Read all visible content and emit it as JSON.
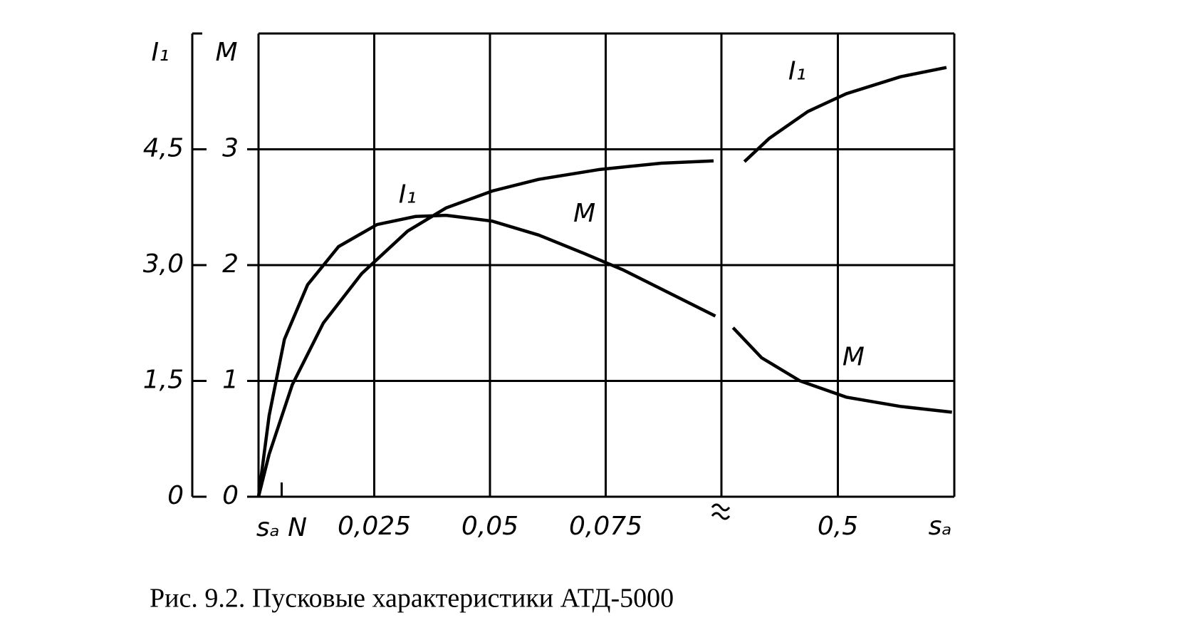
{
  "chart_data": [
    {
      "type": "line",
      "y_label": "M",
      "y2_label": "I₁",
      "ylim": [
        0,
        4
      ],
      "yticks": [
        0,
        1,
        2,
        3
      ],
      "y2lim": [
        0,
        6
      ],
      "y2ticks": [
        0,
        {
          "value": 1.5,
          "label": "1,5"
        },
        {
          "value": 3.0,
          "label": "3,0"
        },
        {
          "value": 4.5,
          "label": "4,5"
        }
      ],
      "xlim": [
        0,
        0.1
      ],
      "xticks": [
        {
          "value": 0.025,
          "label": "0,025"
        },
        {
          "value": 0.05,
          "label": "0,05"
        },
        {
          "value": 0.075,
          "label": "0,075"
        }
      ],
      "annotations": [
        {
          "text": "sₐ N",
          "x": 0.005
        }
      ],
      "grid": true,
      "series": [
        {
          "name": "M",
          "color": "#000000",
          "x": [
            0,
            0.0023,
            0.0056,
            0.0106,
            0.0173,
            0.0256,
            0.0339,
            0.0405,
            0.0505,
            0.0605,
            0.0704,
            0.0787,
            0.0887,
            0.0987
          ],
          "values": [
            0,
            0.7,
            1.36,
            1.83,
            2.16,
            2.35,
            2.42,
            2.43,
            2.38,
            2.26,
            2.1,
            1.96,
            1.76,
            1.56
          ]
        },
        {
          "name": "I₁",
          "color": "#000000",
          "axis": "y2",
          "x": [
            0,
            0.0023,
            0.0073,
            0.014,
            0.0223,
            0.0322,
            0.0405,
            0.0505,
            0.0605,
            0.0738,
            0.087,
            0.0983
          ],
          "values": [
            0,
            0.55,
            1.45,
            2.25,
            2.89,
            3.44,
            3.74,
            3.96,
            4.11,
            4.24,
            4.32,
            4.35
          ]
        }
      ]
    },
    {
      "type": "line",
      "x_label": "sₐ",
      "ylim": [
        0,
        4
      ],
      "yticks": [
        0,
        1,
        2,
        3
      ],
      "y2lim": [
        0,
        6
      ],
      "xlim": [
        0.1,
        0.9
      ],
      "xticks": [
        {
          "value": 0.5,
          "label": "0,5"
        }
      ],
      "grid": true,
      "series": [
        {
          "name": "M",
          "color": "#000000",
          "x": [
            0.14,
            0.238,
            0.37,
            0.529,
            0.715,
            0.892
          ],
          "values": [
            1.46,
            1.2,
            1.0,
            0.86,
            0.78,
            0.73
          ]
        },
        {
          "name": "I₁",
          "color": "#000000",
          "axis": "y2",
          "x": [
            0.179,
            0.264,
            0.397,
            0.529,
            0.715,
            0.873
          ],
          "values": [
            4.34,
            4.64,
            4.99,
            5.22,
            5.44,
            5.56
          ]
        }
      ]
    }
  ],
  "caption": "Рис. 9.2. Пусковые характеристики АТД-5000"
}
